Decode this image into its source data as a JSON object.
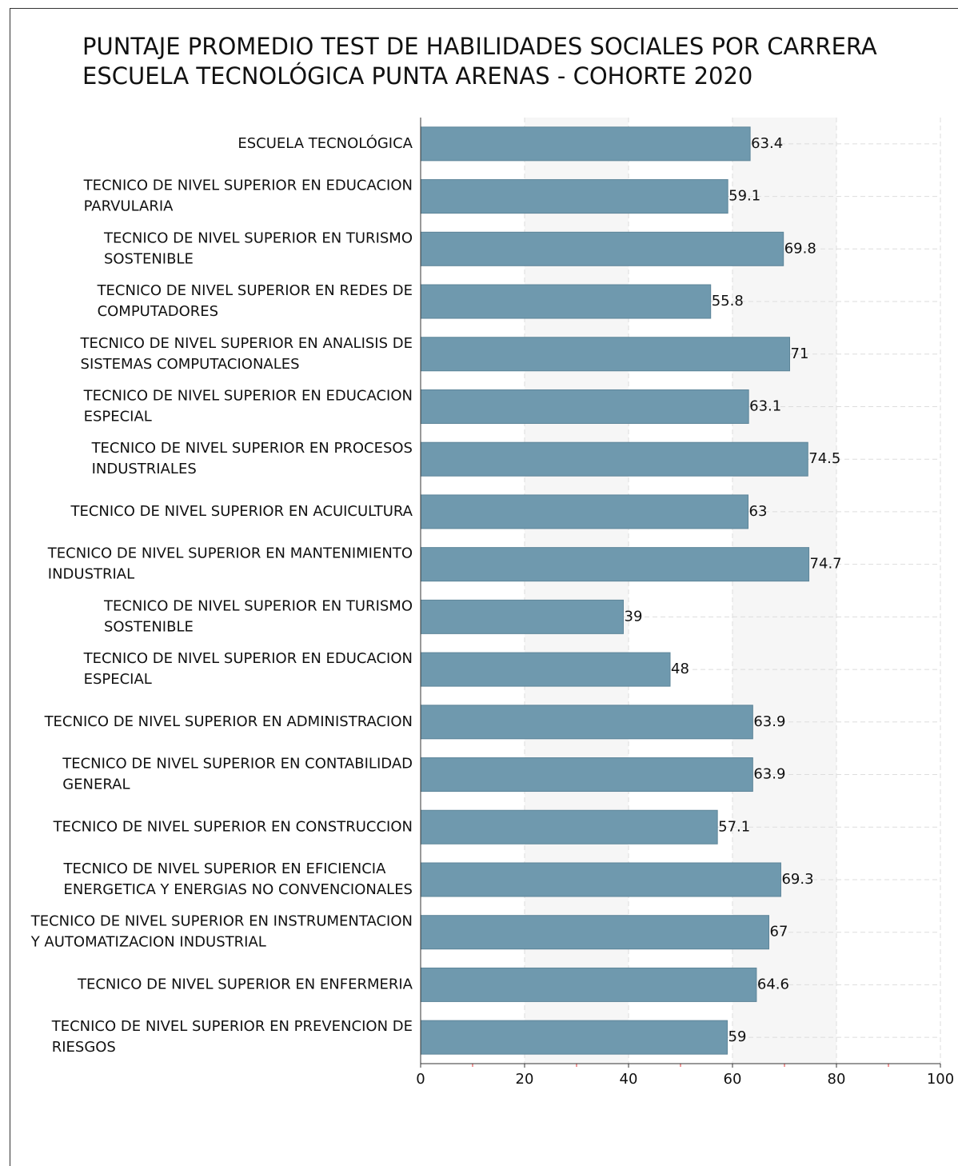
{
  "chart_data": {
    "type": "barh",
    "title": "PUNTAJE PROMEDIO TEST DE HABILIDADES SOCIALES POR CARRERA",
    "subtitle": "ESCUELA TECNOLÓGICA PUNTA ARENAS - COHORTE 2020",
    "categories": [
      "ESCUELA TECNOLÓGICA",
      "TECNICO DE NIVEL SUPERIOR EN EDUCACION PARVULARIA",
      "TECNICO DE NIVEL SUPERIOR EN TURISMO SOSTENIBLE",
      "TECNICO DE NIVEL SUPERIOR EN REDES DE COMPUTADORES",
      "TECNICO DE NIVEL SUPERIOR EN ANALISIS DE SISTEMAS COMPUTACIONALES",
      "TECNICO DE NIVEL SUPERIOR EN EDUCACION ESPECIAL",
      "TECNICO DE NIVEL SUPERIOR EN PROCESOS INDUSTRIALES",
      "TECNICO DE NIVEL SUPERIOR EN ACUICULTURA",
      "TECNICO DE NIVEL SUPERIOR EN MANTENIMIENTO INDUSTRIAL",
      "TECNICO DE NIVEL SUPERIOR EN TURISMO SOSTENIBLE",
      "TECNICO DE NIVEL SUPERIOR EN EDUCACION ESPECIAL",
      "TECNICO DE NIVEL SUPERIOR EN ADMINISTRACION",
      "TECNICO DE NIVEL SUPERIOR EN CONTABILIDAD GENERAL",
      "TECNICO DE NIVEL SUPERIOR EN CONSTRUCCION",
      "TECNICO DE NIVEL SUPERIOR EN EFICIENCIA ENERGETICA Y ENERGIAS NO CONVENCIONALES",
      "TECNICO DE NIVEL SUPERIOR EN INSTRUMENTACION Y AUTOMATIZACION INDUSTRIAL",
      "TECNICO DE NIVEL SUPERIOR EN ENFERMERIA",
      "TECNICO DE NIVEL SUPERIOR EN PREVENCION DE RIESGOS"
    ],
    "values": [
      63.4,
      59.1,
      69.8,
      55.8,
      71,
      63.1,
      74.5,
      63,
      74.7,
      39,
      48,
      63.9,
      63.9,
      57.1,
      69.3,
      67,
      64.6,
      59
    ],
    "color": "#6f99ae",
    "xlim": [
      0,
      100
    ],
    "xticks": [
      0,
      20,
      40,
      60,
      80,
      100
    ],
    "minor_xticks": [
      10,
      30,
      50,
      70,
      90
    ],
    "grid": true
  }
}
